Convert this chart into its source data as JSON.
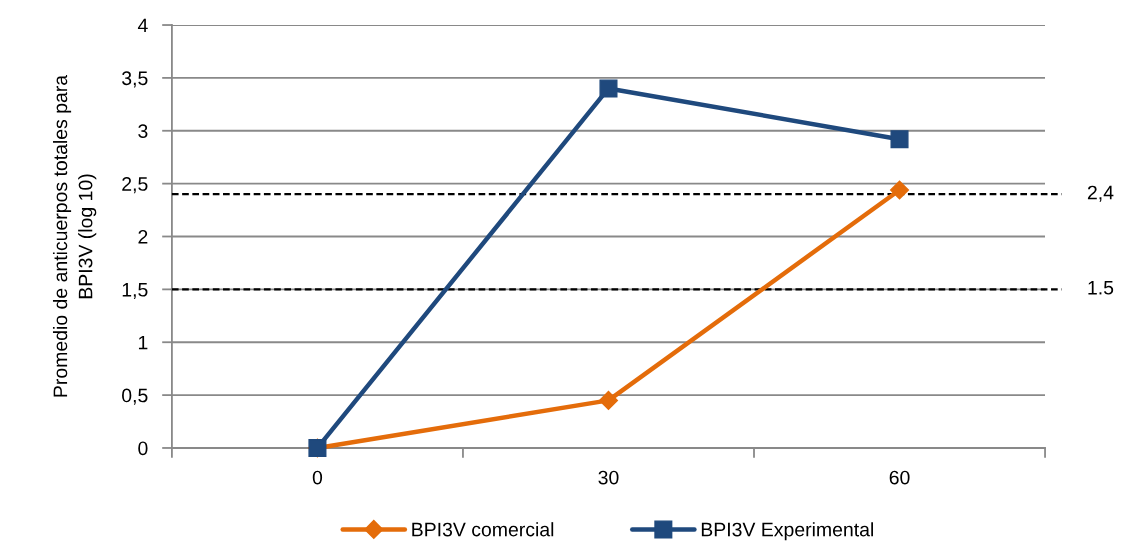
{
  "chart_data": {
    "type": "line",
    "ylabel": "Promedio de anticuerpos totales para\nBPI3V (log 10)",
    "categories": [
      "0",
      "30",
      "60"
    ],
    "series": [
      {
        "name": "BPI3V comercial",
        "color": "#e46c0a",
        "marker": "diamond",
        "values": [
          0,
          0.45,
          2.44
        ]
      },
      {
        "name": "BPI3V Experimental",
        "color": "#1f497d",
        "marker": "square",
        "values": [
          0,
          3.4,
          2.92
        ]
      }
    ],
    "ylim": [
      0,
      4
    ],
    "yticks": [
      0,
      {
        "value": 0.5,
        "label": "0,5"
      },
      1,
      {
        "value": 1.5,
        "label": "1,5"
      },
      2,
      {
        "value": 2.5,
        "label": "2,5"
      },
      3,
      {
        "value": 3.5,
        "label": "3,5"
      },
      4
    ],
    "ref_lines": [
      {
        "axis": "y",
        "value": 2.4,
        "label": "2,4",
        "color": "#000000",
        "line_style": "dashed"
      },
      {
        "axis": "y",
        "value": 1.5,
        "label": "1.5",
        "color": "#000000",
        "line_style": "dashed"
      }
    ],
    "grid": "y",
    "legend": "bottom",
    "line_style": "solid"
  }
}
